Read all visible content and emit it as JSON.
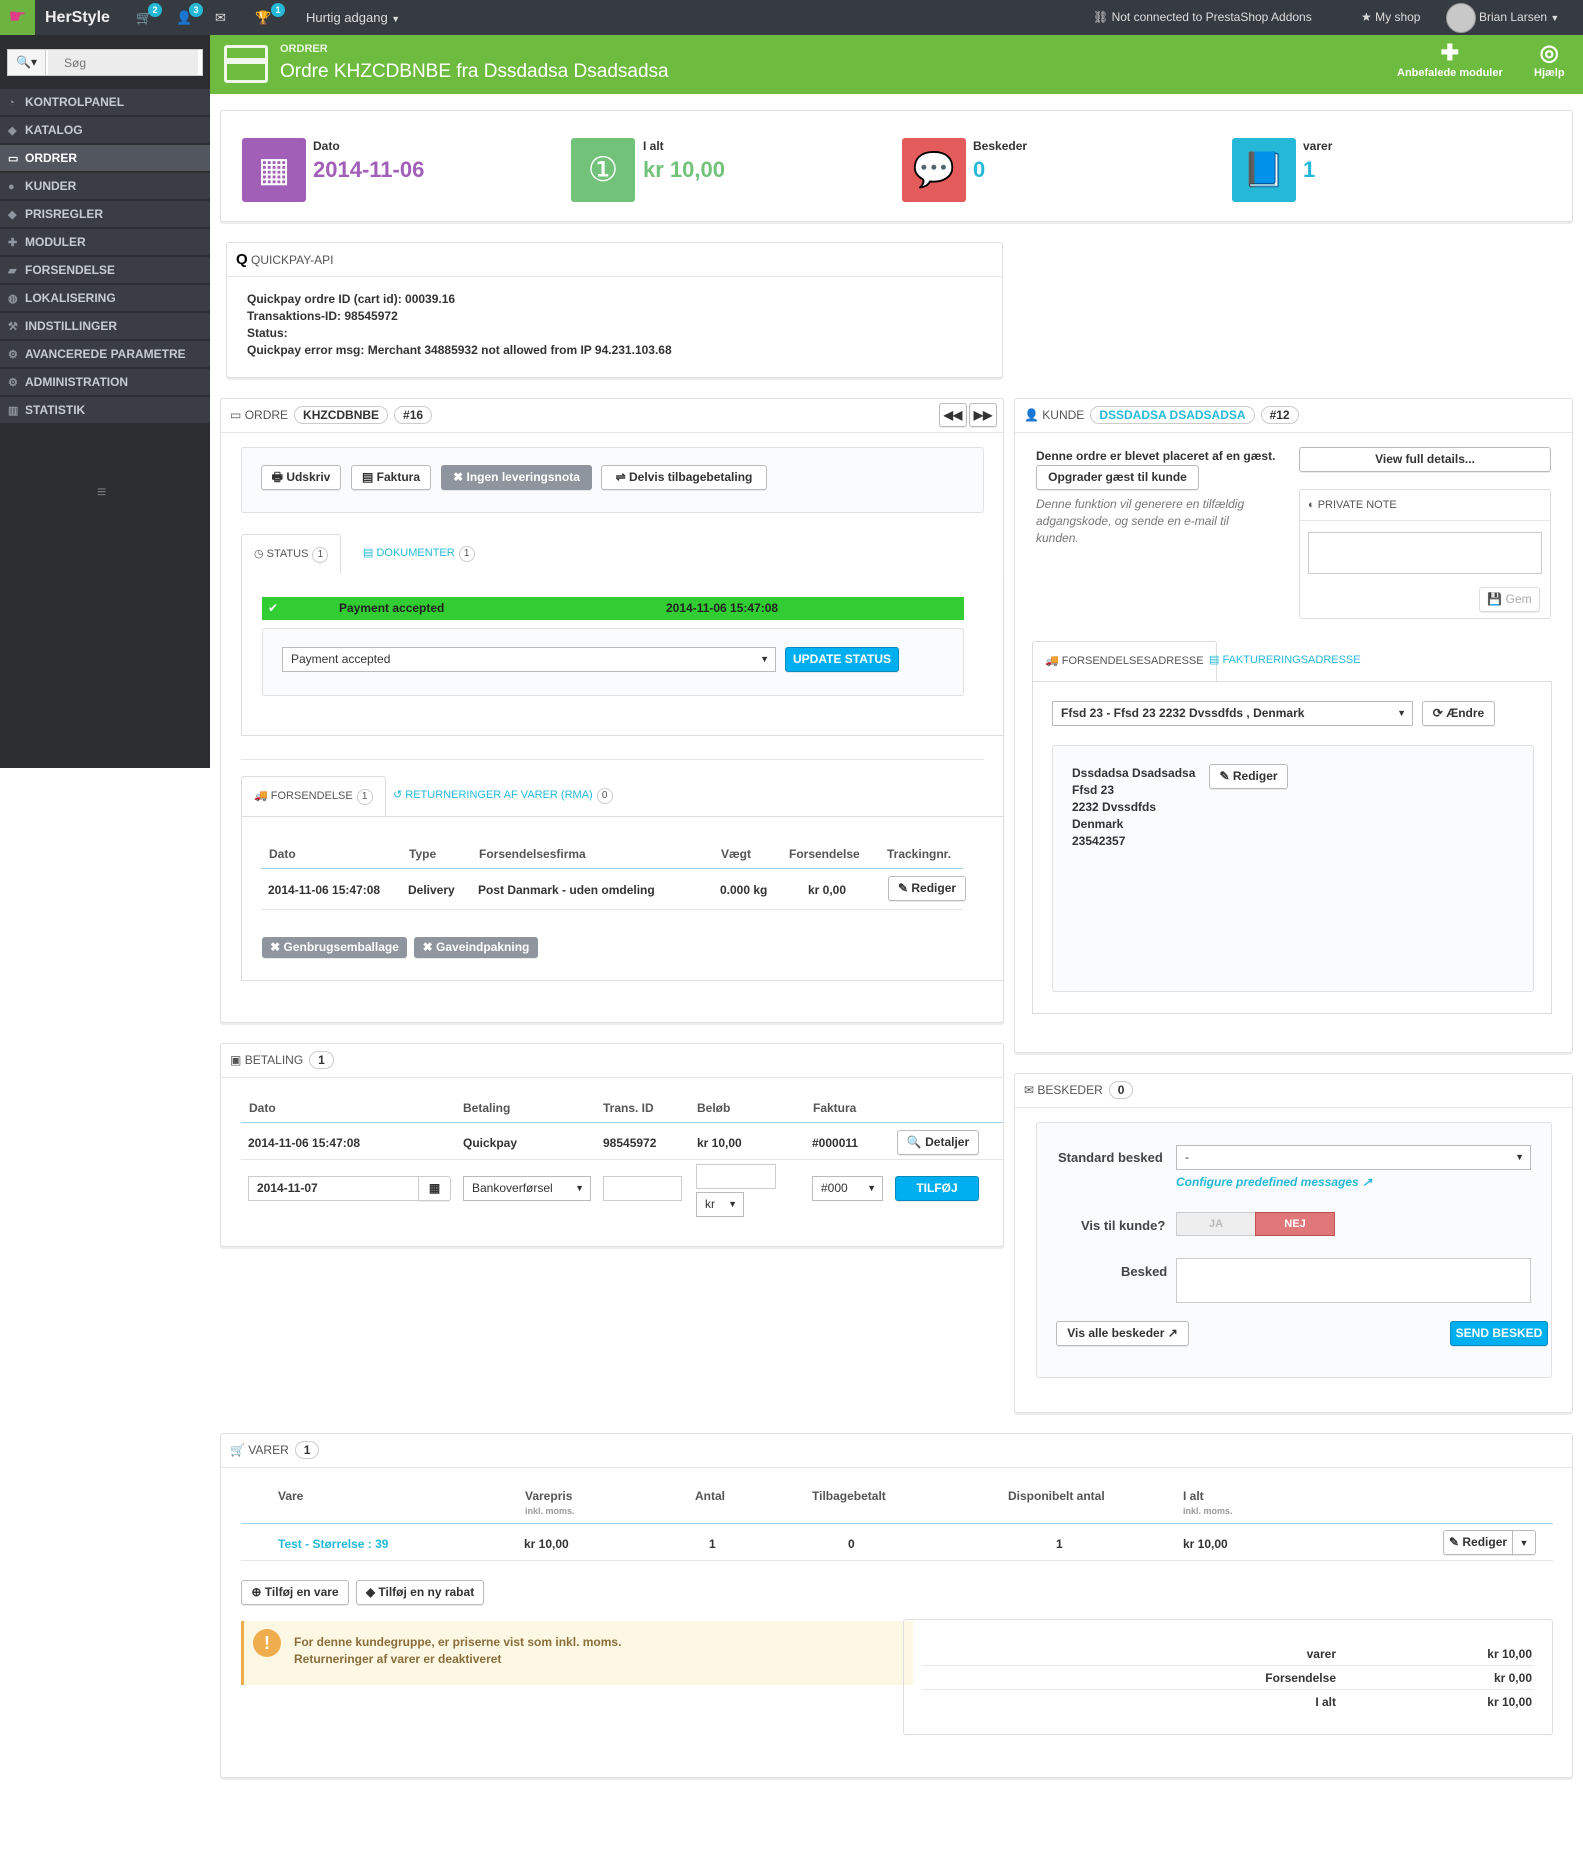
{
  "topbar": {
    "brand": "HerStyle",
    "cart_badge": "2",
    "customers_badge": "3",
    "trophy_badge": "1",
    "quick_access": "Hurtig adgang",
    "addons": "Not connected to PrestaShop Addons",
    "my_shop": "My shop",
    "user": "Brian Larsen"
  },
  "sidebar": {
    "search_placeholder": "Søg",
    "items": [
      {
        "label": "KONTROLPANEL"
      },
      {
        "label": "KATALOG"
      },
      {
        "label": "ORDRER"
      },
      {
        "label": "KUNDER"
      },
      {
        "label": "PRISREGLER"
      },
      {
        "label": "MODULER"
      },
      {
        "label": "FORSENDELSE"
      },
      {
        "label": "LOKALISERING"
      },
      {
        "label": "INDSTILLINGER"
      },
      {
        "label": "AVANCEREDE PARAMETRE"
      },
      {
        "label": "ADMINISTRATION"
      },
      {
        "label": "STATISTIK"
      }
    ]
  },
  "header": {
    "breadcrumb": "ORDRER",
    "title": "Ordre KHZCDBNBE fra Dssdadsa Dsadsadsa",
    "btn_modules": "Anbefalede moduler",
    "btn_help": "Hjælp"
  },
  "kpis": {
    "date_label": "Dato",
    "date_value": "2014-11-06",
    "total_label": "I alt",
    "total_value": "kr 10,00",
    "messages_label": "Beskeder",
    "messages_value": "0",
    "products_label": "varer",
    "products_value": "1",
    "colors": {
      "date": "#a15fb7",
      "total": "#72c279",
      "messages": "#e08f95",
      "products": "#25b9d7"
    }
  },
  "quickpay": {
    "title": "QUICKPAY-API",
    "line1": "Quickpay ordre ID (cart id): 00039.16",
    "line2": "Transaktions-ID: 98545972",
    "line3": "Status:",
    "line4": "Quickpay error msg: Merchant 34885932 not allowed from IP 94.231.103.68"
  },
  "order": {
    "title": "ORDRE",
    "reference": "KHZCDBNBE",
    "number": "#16",
    "btn_print": "Udskriv",
    "btn_invoice": "Faktura",
    "btn_no_delivery": "Ingen leveringsnota",
    "btn_partial_refund": "Delvis tilbagebetaling",
    "tab_status": "STATUS",
    "tab_status_count": "1",
    "tab_documents": "DOKUMENTER",
    "tab_documents_count": "1",
    "status_row_label": "Payment accepted",
    "status_row_date": "2014-11-06 15:47:08",
    "status_select": "Payment accepted",
    "btn_update_status": "UPDATE STATUS",
    "tab_shipping": "FORSENDELSE",
    "tab_shipping_count": "1",
    "tab_returns": "RETURNERINGER AF VARER (RMA)",
    "tab_returns_count": "0",
    "shipping_headers": [
      "Dato",
      "Type",
      "Forsendelsesfirma",
      "Vægt",
      "Forsendelse",
      "Trackingnr."
    ],
    "shipping_row": [
      "2014-11-06 15:47:08",
      "Delivery",
      "Post Danmark - uden omdeling",
      "0.000 kg",
      "kr 0,00"
    ],
    "btn_edit": "Rediger",
    "btn_recycle": "Genbrugsemballage",
    "btn_gift": "Gaveindpakning"
  },
  "customer": {
    "title": "KUNDE",
    "name_pill": "DSSDADSA DSADSADSA",
    "id": "#12",
    "guest_text": "Denne ordre er blevet placeret af en gæst.",
    "btn_upgrade": "Opgrader gæst til kunde",
    "upgrade_note_1": "Denne funktion vil generere en tilfældig",
    "upgrade_note_2": "adgangskode, og sende en e-mail til",
    "upgrade_note_3": "kunden.",
    "btn_view_details": "View full details...",
    "private_note_title": "PRIVATE NOTE",
    "btn_save": "Gem",
    "tab_shipping_addr": "FORSENDELSESADRESSE",
    "tab_billing_addr": "FAKTURERINGSADRESSE",
    "address_select": "Ffsd 23 - Ffsd 23 2232 Dvssdfds , Denmark",
    "btn_change": "Ændre",
    "address_lines": [
      "Dssdadsa Dsadsadsa",
      "Ffsd 23",
      "2232 Dvssdfds",
      "Denmark",
      "23542357"
    ],
    "btn_edit": "Rediger"
  },
  "payment": {
    "title": "BETALING",
    "count": "1",
    "headers": [
      "Dato",
      "Betaling",
      "Trans. ID",
      "Beløb",
      "Faktura"
    ],
    "row": [
      "2014-11-06 15:47:08",
      "Quickpay",
      "98545972",
      "kr 10,00",
      "#000011"
    ],
    "btn_details": "Detaljer",
    "new_date": "2014-11-07",
    "new_method": "Bankoverførsel",
    "new_currency": "kr",
    "new_invoice": "#000",
    "btn_add": "TILFØJ"
  },
  "messages": {
    "title": "BESKEDER",
    "count": "0",
    "std_label": "Standard besked",
    "std_value": "-",
    "configure_link": "Configure predefined messages",
    "show_label": "Vis til kunde?",
    "yes": "JA",
    "no": "NEJ",
    "message_label": "Besked",
    "btn_all": "Vis alle beskeder",
    "btn_send": "SEND BESKED"
  },
  "products": {
    "title": "VARER",
    "count": "1",
    "headers": [
      "Vare",
      "Varepris",
      "Antal",
      "Tilbagebetalt",
      "Disponibelt antal",
      "I alt"
    ],
    "sub_incl": "inkl. moms.",
    "row": [
      "Test - Størrelse : 39",
      "kr 10,00",
      "1",
      "0",
      "1",
      "kr 10,00"
    ],
    "btn_edit": "Rediger",
    "btn_add_product": "Tilføj en vare",
    "btn_add_discount": "Tilføj en ny rabat",
    "notice_1": "For denne kundegruppe, er priserne vist som inkl. moms.",
    "notice_2": "Returneringer af varer er deaktiveret",
    "totals": [
      {
        "label": "varer",
        "value": "kr 10,00"
      },
      {
        "label": "Forsendelse",
        "value": "kr 0,00"
      },
      {
        "label": "I alt",
        "value": "kr 10,00"
      }
    ]
  }
}
